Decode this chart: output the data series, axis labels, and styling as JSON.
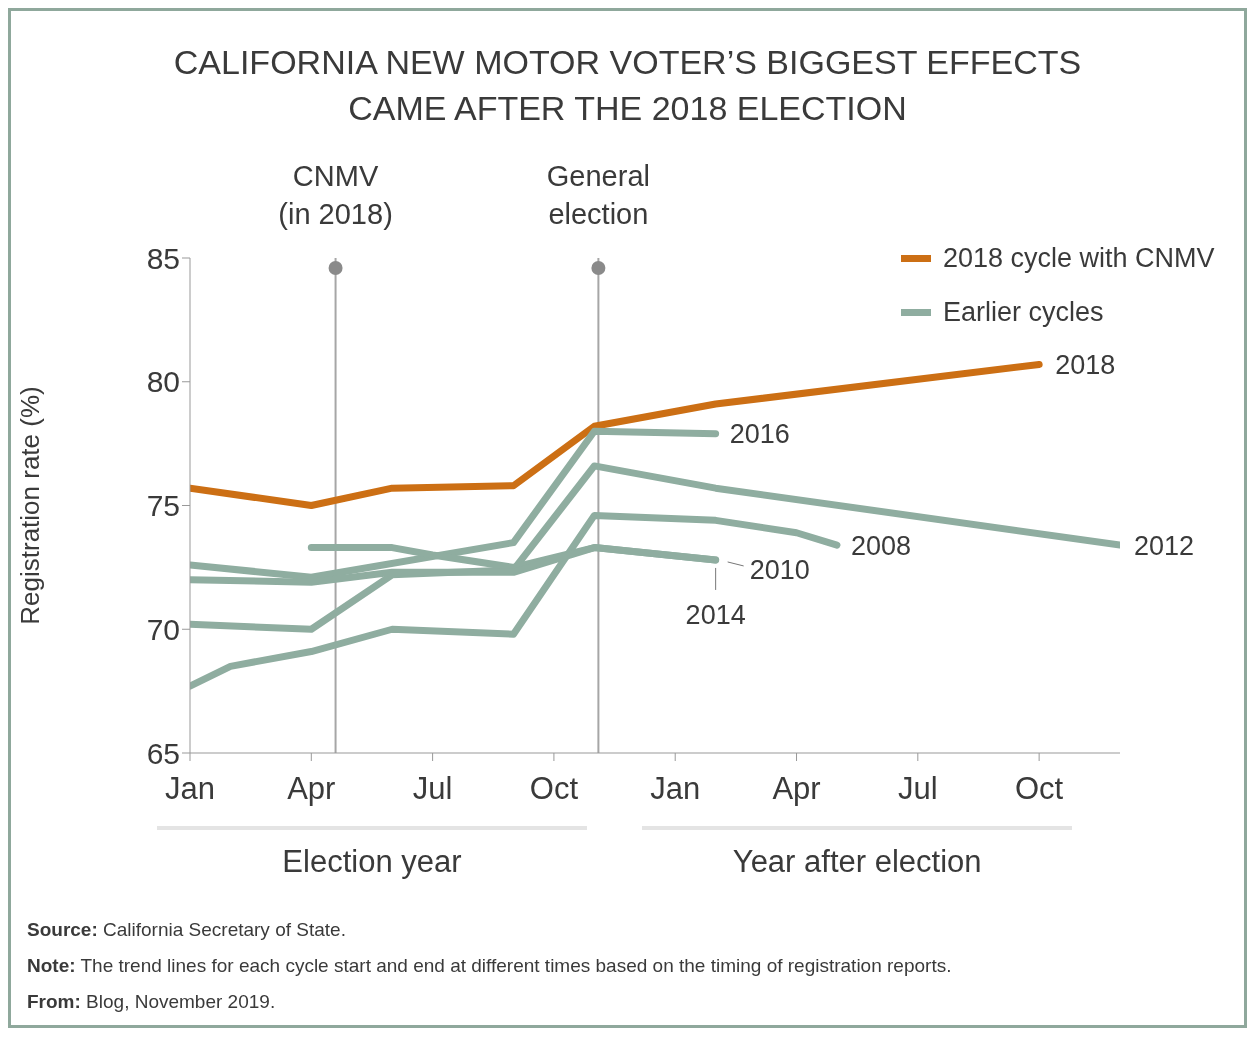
{
  "chart_data": {
    "type": "line",
    "title": "CALIFORNIA NEW MOTOR VOTER’S BIGGEST EFFECTS\nCAME AFTER THE 2018 ELECTION",
    "ylabel": "Registration rate (%)",
    "categories": [
      "Jan",
      null,
      null,
      "Apr",
      null,
      null,
      "Jul",
      null,
      null,
      "Oct",
      null,
      null,
      "Jan",
      null,
      null,
      "Apr",
      null,
      null,
      "Jul",
      null,
      null,
      "Oct",
      null,
      null
    ],
    "series": [
      {
        "name": "2018",
        "color": "#cc6f14",
        "values": [
          75.7,
          null,
          null,
          75.0,
          null,
          75.7,
          null,
          null,
          75.8,
          null,
          78.2,
          null,
          null,
          79.1,
          null,
          null,
          null,
          null,
          null,
          null,
          null,
          80.7,
          null,
          null
        ]
      },
      {
        "name": "2016",
        "color": "#8fada0",
        "values": [
          72.6,
          null,
          null,
          72.1,
          null,
          null,
          null,
          null,
          73.5,
          null,
          78.0,
          null,
          null,
          77.9,
          null,
          null,
          null,
          null,
          null,
          null,
          null,
          null,
          null,
          null
        ]
      },
      {
        "name": "2012",
        "color": "#8fada0",
        "values": [
          70.2,
          null,
          null,
          70.0,
          null,
          72.2,
          null,
          null,
          72.4,
          null,
          76.6,
          null,
          null,
          75.7,
          null,
          null,
          null,
          null,
          null,
          null,
          null,
          null,
          null,
          73.4
        ]
      },
      {
        "name": "2008",
        "color": "#8fada0",
        "values": [
          67.7,
          68.5,
          null,
          69.1,
          null,
          70.0,
          null,
          null,
          69.8,
          null,
          74.6,
          null,
          null,
          74.4,
          null,
          73.9,
          73.4,
          null,
          null,
          null,
          null,
          null,
          null,
          null
        ]
      },
      {
        "name": "2010",
        "color": "#8fada0",
        "values": [
          null,
          null,
          null,
          73.3,
          null,
          73.3,
          73.0,
          null,
          72.5,
          null,
          73.3,
          null,
          null,
          72.8,
          null,
          null,
          null,
          null,
          null,
          null,
          null,
          null,
          null,
          null
        ]
      },
      {
        "name": "2014",
        "color": "#8fada0",
        "values": [
          72.0,
          null,
          null,
          71.9,
          null,
          72.3,
          null,
          null,
          72.3,
          null,
          73.3,
          null,
          null,
          72.8,
          null,
          null,
          null,
          null,
          null,
          null,
          null,
          null,
          null,
          null
        ]
      }
    ],
    "ylim": [
      65,
      85
    ],
    "yticks": [
      65,
      70,
      75,
      80,
      85
    ],
    "grid": false,
    "legend": "top right",
    "marker": "none",
    "line_style": "solid",
    "annotations": [
      "2018 cycle with CNMV",
      "Earlier cycles",
      "CNMV\n(in 2018)",
      "General\nelection",
      "Election year",
      "Year after election",
      "Source: California Secretary of State.",
      "Note: The trend lines for each cycle start and end at different times based on the timing of registration reports.",
      "From: Blog, November 2019."
    ]
  }
}
